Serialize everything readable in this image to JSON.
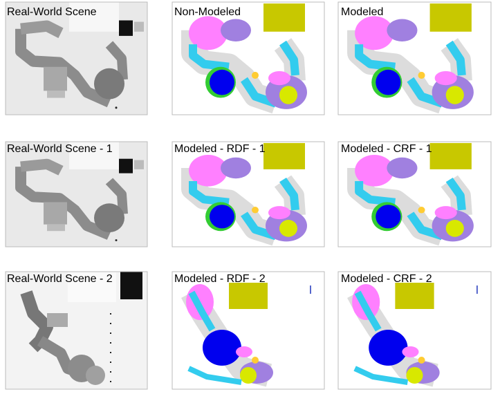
{
  "panels": [
    {
      "label": "Real-World Scene"
    },
    {
      "label": "Non-Modeled"
    },
    {
      "label": "Modeled"
    },
    {
      "label": "Real-World Scene - 1"
    },
    {
      "label": "Modeled - RDF - 1"
    },
    {
      "label": "Modeled - CRF - 1"
    },
    {
      "label": "Real-World Scene - 2"
    },
    {
      "label": "Modeled - RDF - 2"
    },
    {
      "label": "Modeled - CRF - 2"
    }
  ]
}
